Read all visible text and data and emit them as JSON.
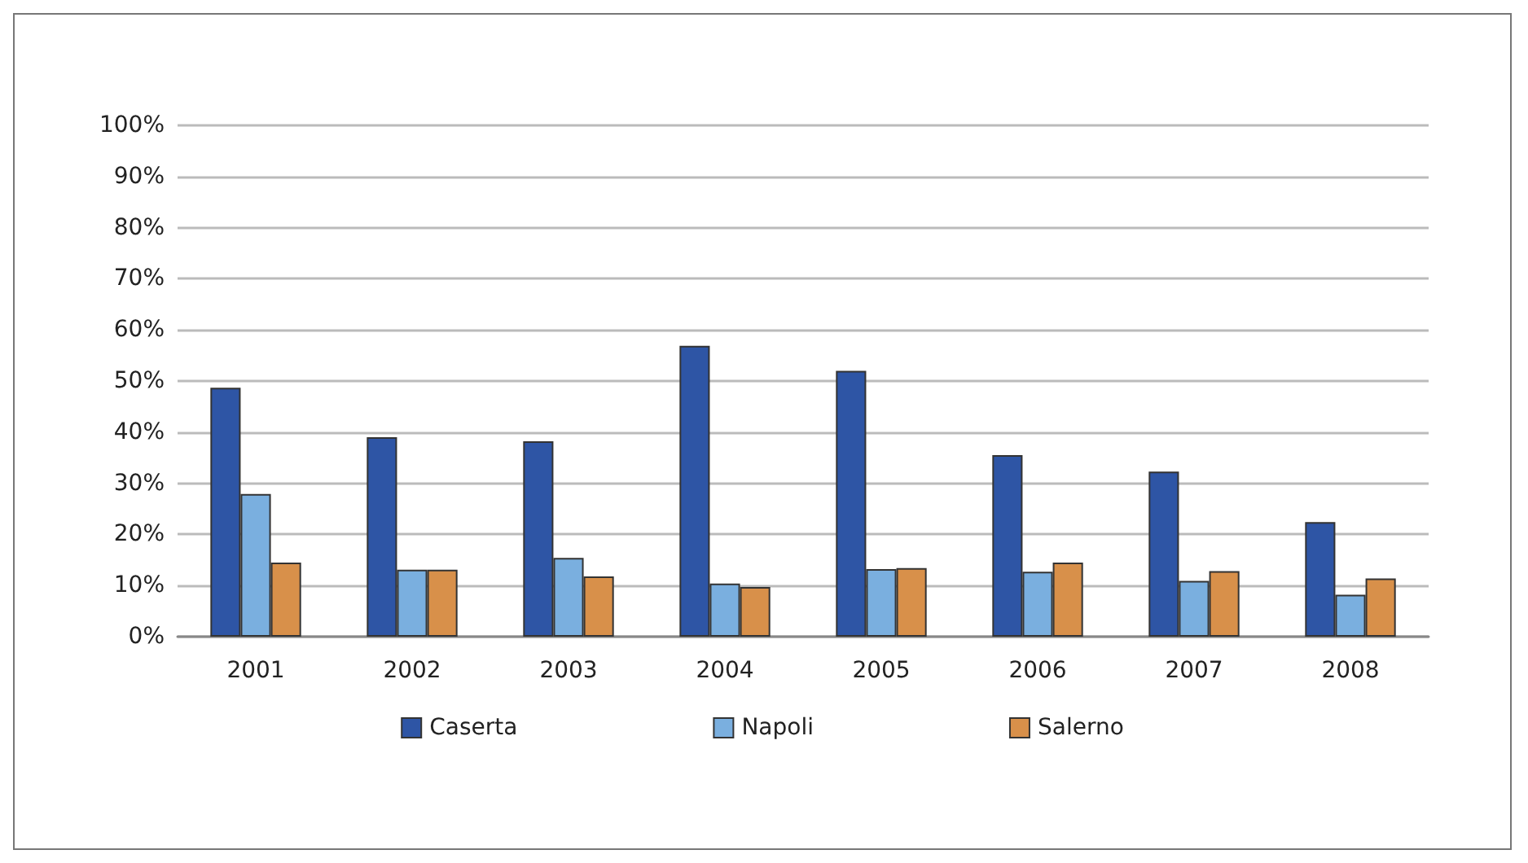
{
  "chart_data": {
    "type": "bar",
    "categories": [
      "2001",
      "2002",
      "2003",
      "2004",
      "2005",
      "2006",
      "2007",
      "2008"
    ],
    "series": [
      {
        "name": "Caserta",
        "color": "#2e55a5",
        "values": [
          48.7,
          39,
          38.2,
          56.9,
          52,
          35.5,
          32.3,
          22.4
        ]
      },
      {
        "name": "Napoli",
        "color": "#7aafdf",
        "values": [
          27.9,
          13.1,
          15.4,
          10.4,
          13.2,
          12.7,
          10.9,
          8.2
        ]
      },
      {
        "name": "Salerno",
        "color": "#d8904a",
        "values": [
          14.5,
          13.1,
          11.8,
          9.7,
          13.4,
          14.5,
          12.8,
          11.4
        ]
      }
    ],
    "ylim": [
      0,
      100
    ],
    "yticks": [
      {
        "value": 0,
        "label": "0%"
      },
      {
        "value": 10,
        "label": "10%"
      },
      {
        "value": 20,
        "label": "20%"
      },
      {
        "value": 30,
        "label": "30%"
      },
      {
        "value": 40,
        "label": "40%"
      },
      {
        "value": 50,
        "label": "50%"
      },
      {
        "value": 60,
        "label": "60%"
      },
      {
        "value": 70,
        "label": "70%"
      },
      {
        "value": 80,
        "label": "80%"
      },
      {
        "value": 90,
        "label": "90%"
      },
      {
        "value": 100,
        "label": "100%"
      }
    ],
    "grid": "y",
    "legend": "bottom"
  }
}
